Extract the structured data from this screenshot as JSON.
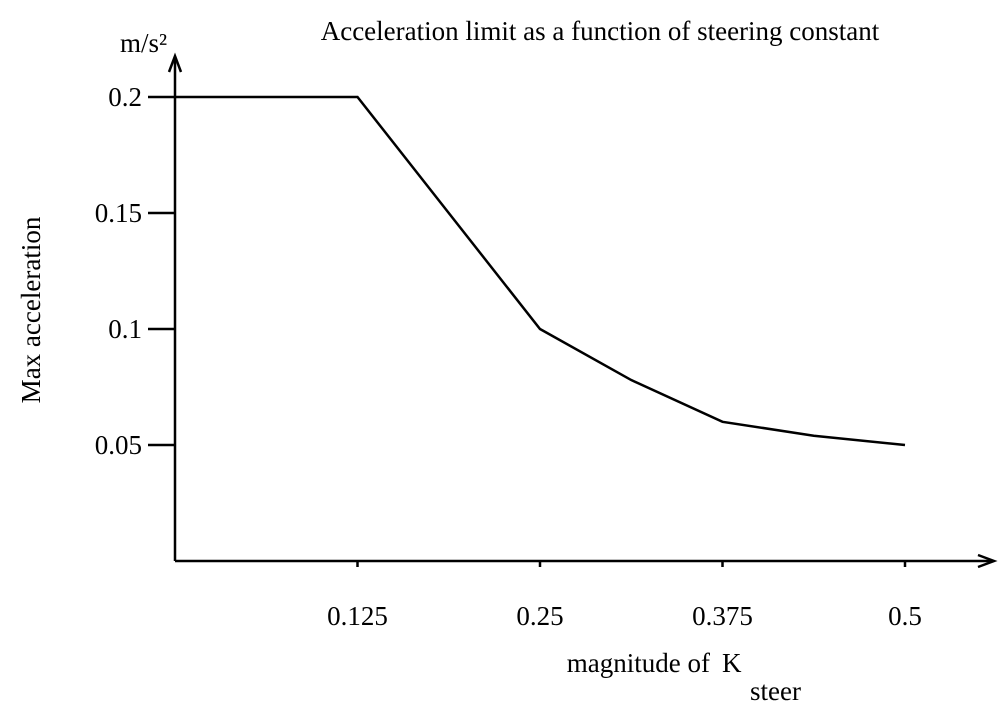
{
  "chart_data": {
    "type": "line",
    "title": "Acceleration limit as a function of steering constant",
    "y_unit": "m/s²",
    "y_label": "Max acceleration",
    "x_label": "magnitude of",
    "x_symbol": "K",
    "x_symbol_subscript": "steer",
    "x": [
      0,
      0.125,
      0.1875,
      0.25,
      0.3125,
      0.375,
      0.4375,
      0.5
    ],
    "series": [
      {
        "color": "#000000",
        "values": [
          0.2,
          0.2,
          0.15,
          0.1,
          0.078,
          0.06,
          0.054,
          0.05
        ]
      }
    ],
    "xlim": [
      0,
      0.5
    ],
    "xticks": [
      0.125,
      0.25,
      0.375,
      0.5
    ],
    "ylim": [
      0,
      0.2
    ],
    "yticks": [
      0.2,
      0.15,
      0.1,
      0.05
    ]
  }
}
